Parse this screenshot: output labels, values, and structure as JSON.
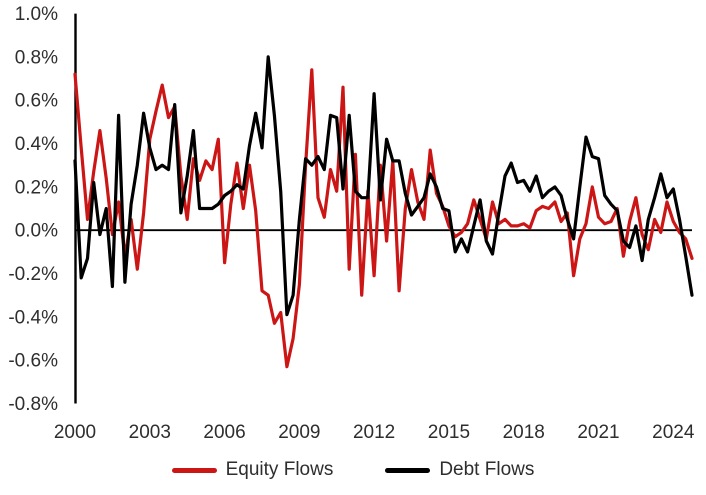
{
  "page": {
    "background": "#ffffff",
    "text_color": "#2e2e2e"
  },
  "legend": {
    "equity_label": "Equity Flows",
    "debt_label": "Debt Flows"
  },
  "chart_data": {
    "type": "line",
    "title": "",
    "xlabel": "",
    "ylabel": "",
    "x_period": {
      "start": "2000Q1",
      "end": "2024Q4",
      "frequency": "quarterly",
      "count": 100
    },
    "x_tick_labels": [
      "2000",
      "2003",
      "2006",
      "2009",
      "2012",
      "2015",
      "2018",
      "2021",
      "2024"
    ],
    "x_tick_quarter_indices": [
      0,
      12,
      24,
      36,
      48,
      60,
      72,
      84,
      96
    ],
    "y_tick_labels": [
      "1.0%",
      "0.8%",
      "0.6%",
      "0.4%",
      "0.2%",
      "0.0%",
      "-0.2%",
      "-0.4%",
      "-0.6%",
      "-0.8%"
    ],
    "y_tick_values": [
      1.0,
      0.8,
      0.6,
      0.4,
      0.2,
      0.0,
      -0.2,
      -0.4,
      -0.6,
      -0.8
    ],
    "ylim": [
      -0.8,
      1.0
    ],
    "y_unit": "percent",
    "grid": false,
    "zero_line": true,
    "legend_position": "bottom",
    "axis_color": "#000000",
    "series": [
      {
        "name": "Equity Flows",
        "color": "#cc1616",
        "values": [
          0.72,
          0.38,
          0.05,
          0.27,
          0.46,
          0.24,
          -0.02,
          0.13,
          -0.12,
          0.05,
          -0.18,
          0.08,
          0.42,
          0.55,
          0.67,
          0.52,
          0.57,
          0.25,
          0.05,
          0.33,
          0.23,
          0.32,
          0.28,
          0.42,
          -0.15,
          0.12,
          0.31,
          0.1,
          0.3,
          0.09,
          -0.28,
          -0.3,
          -0.43,
          -0.38,
          -0.63,
          -0.5,
          -0.25,
          0.3,
          0.74,
          0.15,
          0.06,
          0.28,
          0.18,
          0.66,
          -0.18,
          0.35,
          -0.3,
          0.18,
          -0.21,
          0.3,
          -0.05,
          0.32,
          -0.28,
          0.1,
          0.28,
          0.13,
          0.05,
          0.37,
          0.17,
          0.11,
          0.02,
          -0.03,
          -0.01,
          0.03,
          0.14,
          0.05,
          -0.04,
          0.13,
          0.03,
          0.05,
          0.02,
          0.02,
          0.03,
          0.01,
          0.09,
          0.11,
          0.1,
          0.13,
          0.04,
          0.08,
          -0.21,
          -0.04,
          0.03,
          0.2,
          0.06,
          0.03,
          0.04,
          0.1,
          -0.12,
          0.04,
          0.15,
          -0.02,
          -0.09,
          0.05,
          -0.01,
          0.13,
          0.04,
          -0.01,
          -0.04,
          -0.13
        ]
      },
      {
        "name": "Debt Flows",
        "color": "#000000",
        "values": [
          0.32,
          -0.22,
          -0.13,
          0.22,
          -0.02,
          0.1,
          -0.26,
          0.53,
          -0.24,
          0.12,
          0.3,
          0.54,
          0.38,
          0.28,
          0.3,
          0.28,
          0.58,
          0.08,
          0.25,
          0.46,
          0.1,
          0.1,
          0.1,
          0.12,
          0.16,
          0.18,
          0.21,
          0.19,
          0.39,
          0.54,
          0.38,
          0.8,
          0.53,
          0.18,
          -0.39,
          -0.3,
          0.05,
          0.33,
          0.3,
          0.34,
          0.28,
          0.53,
          0.52,
          0.19,
          0.53,
          0.18,
          0.15,
          0.15,
          0.63,
          0.14,
          0.42,
          0.32,
          0.32,
          0.17,
          0.07,
          0.11,
          0.15,
          0.26,
          0.2,
          0.1,
          0.09,
          -0.1,
          -0.04,
          -0.1,
          0.02,
          0.14,
          -0.05,
          -0.11,
          0.08,
          0.25,
          0.31,
          0.22,
          0.23,
          0.18,
          0.25,
          0.15,
          0.18,
          0.2,
          0.16,
          0.05,
          -0.04,
          0.2,
          0.43,
          0.34,
          0.33,
          0.16,
          0.12,
          0.09,
          -0.05,
          -0.08,
          0.02,
          -0.14,
          0.05,
          0.15,
          0.26,
          0.15,
          0.19,
          0.05,
          -0.12,
          -0.3
        ]
      }
    ]
  }
}
